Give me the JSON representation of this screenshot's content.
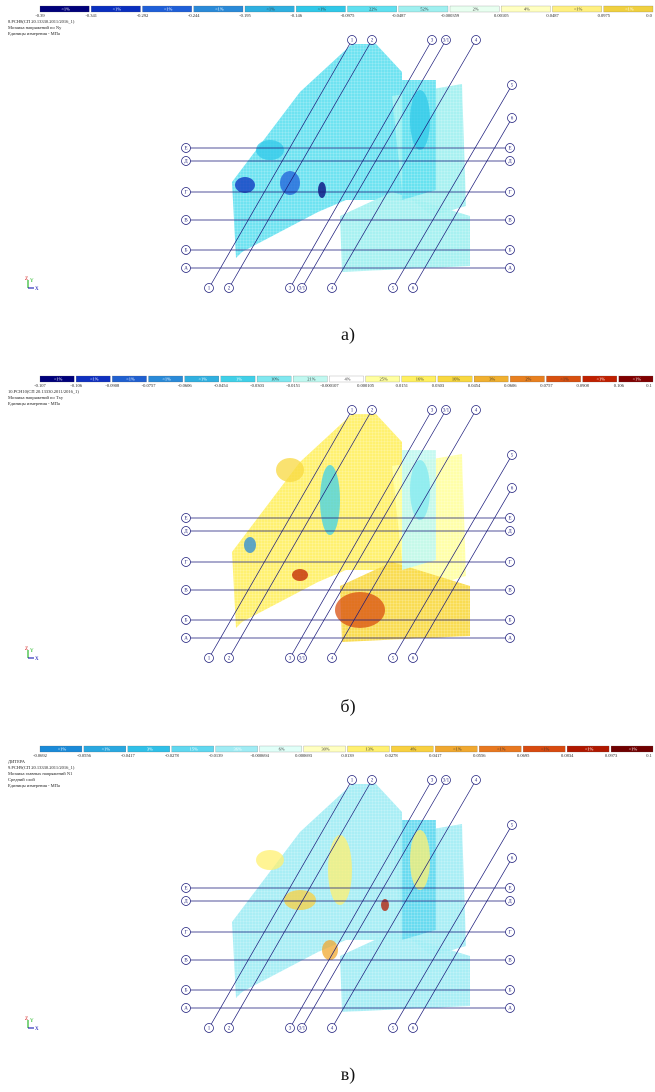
{
  "axis_labels": {
    "rows": [
      "Е",
      "Д",
      "Г",
      "В",
      "Б",
      "А"
    ],
    "columns": [
      "1",
      "2",
      "3",
      "3/1",
      "4",
      "5",
      "6"
    ]
  },
  "axes_icon": {
    "z": "Z",
    "y": "Y",
    "x": "X"
  },
  "panels": [
    {
      "caption": "а)",
      "header": [
        "8.РСН8(СП 20.13330.2011/2016_1)",
        "Мозаика напряжений по Ny",
        "Единицы измерения - МПа"
      ],
      "legend": {
        "colors": [
          "#00007a",
          "#0a2fbf",
          "#1f5fd8",
          "#2a8ad8",
          "#2fb0e0",
          "#30c8e8",
          "#5fe0f0",
          "#9ff0f0",
          "#e8fff0",
          "#ffffc0",
          "#fff080",
          "#f0d040"
        ],
        "percents": [
          "<1%",
          "<1%",
          "<1%",
          "<1%",
          "<1%",
          "<1%",
          "22%",
          "52%",
          "2%",
          "4%",
          "<1%",
          "<1%"
        ],
        "values": [
          "-0.39",
          "-0.341",
          "-0.292",
          "-0.244",
          "-0.195",
          "-0.146",
          "-0.0975",
          "-0.0487",
          "-0.000359",
          "0.00105",
          "0.0487",
          "0.0975",
          "0.0"
        ]
      }
    },
    {
      "caption": "б)",
      "header": [
        "10.РСН10(СП 20.13330.2011/2016_1)",
        "Мозаика напряжений по Txy",
        "Единицы измерения - МПа"
      ],
      "legend": {
        "colors": [
          "#00007a",
          "#1030c0",
          "#2060d0",
          "#2a8ad8",
          "#30b0e0",
          "#40d0e8",
          "#80e8f0",
          "#c0f8f0",
          "#ffffff",
          "#ffffa0",
          "#fff060",
          "#f8d840",
          "#f0b030",
          "#e88020",
          "#d85010",
          "#c02000",
          "#800000"
        ],
        "percents": [
          "<1%",
          "<1%",
          "<1%",
          "<1%",
          "<1%",
          "1%",
          "10%",
          "21%",
          "4%",
          "25%",
          "16%",
          "16%",
          "3%",
          "2%",
          "<1%",
          "<1%",
          "<1%"
        ],
        "values": [
          "-0.107",
          "-0.106",
          "-0.0908",
          "-0.0757",
          "-0.0606",
          "-0.0454",
          "-0.0303",
          "-0.0151",
          "-0.000107",
          "0.000105",
          "0.0151",
          "0.0303",
          "0.0454",
          "0.0606",
          "0.0757",
          "0.0908",
          "0.106",
          "0.1"
        ]
      }
    },
    {
      "caption": "в)",
      "header": [
        "ДИТЕРА",
        "9.РСН9(СП 20.13330.2011/2016_1)",
        "Мозаика главных напряжений N1",
        "Средний слой",
        "Единицы измерения - МПа"
      ],
      "legend": {
        "colors": [
          "#1a8ad8",
          "#2aa8e0",
          "#30c0e8",
          "#60d8f0",
          "#a0ecf4",
          "#e0fff8",
          "#ffffc0",
          "#fff070",
          "#f8d040",
          "#f0a830",
          "#e87820",
          "#d84a10",
          "#b01800",
          "#700000"
        ],
        "percents": [
          "<1%",
          "<1%",
          "3%",
          "15%",
          "36%",
          "6%",
          "30%",
          "13%",
          "4%",
          "<1%",
          "<1%",
          "<1%",
          "<1%",
          "<1%"
        ],
        "values": [
          "-0.0692",
          "-0.0556",
          "-0.0417",
          "-0.0278",
          "-0.0139",
          "-0.000694",
          "0.000693",
          "0.0139",
          "0.0278",
          "0.0417",
          "0.0556",
          "0.0695",
          "0.0834",
          "0.0973",
          "0.1"
        ]
      }
    }
  ]
}
